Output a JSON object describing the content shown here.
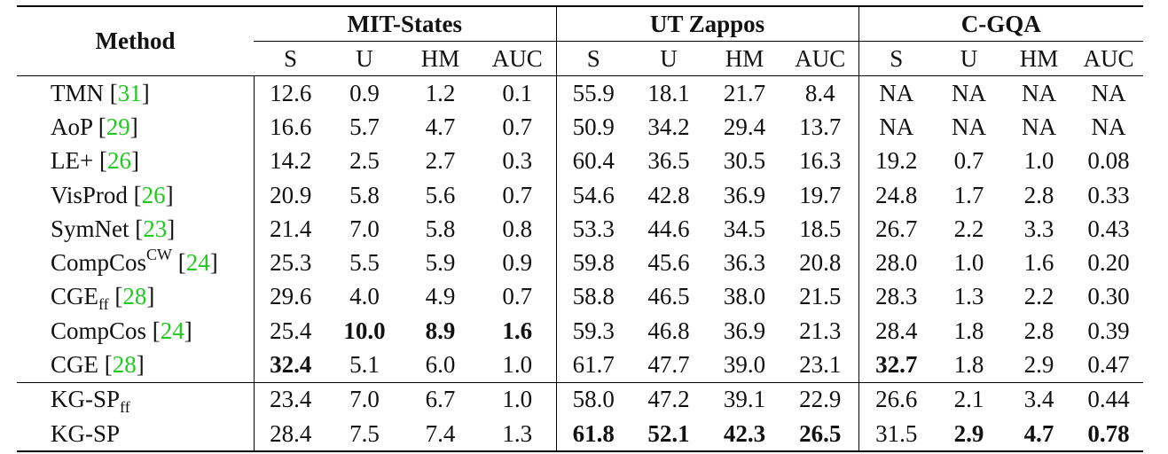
{
  "groups": [
    "MIT-States",
    "UT Zappos",
    "C-GQA"
  ],
  "method_header": "Method",
  "subheaders": [
    "S",
    "U",
    "HM",
    "AUC"
  ],
  "rows": [
    {
      "name": "TMN",
      "sub": "",
      "sup": "",
      "cite": "31",
      "vals": [
        "12.6",
        "0.9",
        "1.2",
        "0.1",
        "55.9",
        "18.1",
        "21.7",
        "8.4",
        "NA",
        "NA",
        "NA",
        "NA"
      ],
      "bold": []
    },
    {
      "name": "AoP",
      "sub": "",
      "sup": "",
      "cite": "29",
      "vals": [
        "16.6",
        "5.7",
        "4.7",
        "0.7",
        "50.9",
        "34.2",
        "29.4",
        "13.7",
        "NA",
        "NA",
        "NA",
        "NA"
      ],
      "bold": []
    },
    {
      "name": "LE+",
      "sub": "",
      "sup": "",
      "cite": "26",
      "vals": [
        "14.2",
        "2.5",
        "2.7",
        "0.3",
        "60.4",
        "36.5",
        "30.5",
        "16.3",
        "19.2",
        "0.7",
        "1.0",
        "0.08"
      ],
      "bold": []
    },
    {
      "name": "VisProd",
      "sub": "",
      "sup": "",
      "cite": "26",
      "vals": [
        "20.9",
        "5.8",
        "5.6",
        "0.7",
        "54.6",
        "42.8",
        "36.9",
        "19.7",
        "24.8",
        "1.7",
        "2.8",
        "0.33"
      ],
      "bold": []
    },
    {
      "name": "SymNet",
      "sub": "",
      "sup": "",
      "cite": "23",
      "vals": [
        "21.4",
        "7.0",
        "5.8",
        "0.8",
        "53.3",
        "44.6",
        "34.5",
        "18.5",
        "26.7",
        "2.2",
        "3.3",
        "0.43"
      ],
      "bold": []
    },
    {
      "name": "CompCos",
      "sub": "",
      "sup": "CW",
      "cite": "24",
      "vals": [
        "25.3",
        "5.5",
        "5.9",
        "0.9",
        "59.8",
        "45.6",
        "36.3",
        "20.8",
        "28.0",
        "1.0",
        "1.6",
        "0.20"
      ],
      "bold": []
    },
    {
      "name": "CGE",
      "sub": "ff",
      "sup": "",
      "cite": "28",
      "vals": [
        "29.6",
        "4.0",
        "4.9",
        "0.7",
        "58.8",
        "46.5",
        "38.0",
        "21.5",
        "28.3",
        "1.3",
        "2.2",
        "0.30"
      ],
      "bold": []
    },
    {
      "name": "CompCos",
      "sub": "",
      "sup": "",
      "cite": "24",
      "vals": [
        "25.4",
        "10.0",
        "8.9",
        "1.6",
        "59.3",
        "46.8",
        "36.9",
        "21.3",
        "28.4",
        "1.8",
        "2.8",
        "0.39"
      ],
      "bold": [
        1,
        2,
        3
      ]
    },
    {
      "name": "CGE",
      "sub": "",
      "sup": "",
      "cite": "28",
      "vals": [
        "32.4",
        "5.1",
        "6.0",
        "1.0",
        "61.7",
        "47.7",
        "39.0",
        "23.1",
        "32.7",
        "1.8",
        "2.9",
        "0.47"
      ],
      "bold": [
        0,
        8
      ]
    },
    {
      "name": "KG-SP",
      "sub": "ff",
      "sup": "",
      "cite": "",
      "vals": [
        "23.4",
        "7.0",
        "6.7",
        "1.0",
        "58.0",
        "47.2",
        "39.1",
        "22.9",
        "26.6",
        "2.1",
        "3.4",
        "0.44"
      ],
      "bold": []
    },
    {
      "name": "KG-SP",
      "sub": "",
      "sup": "",
      "cite": "",
      "vals": [
        "28.4",
        "7.5",
        "7.4",
        "1.3",
        "61.8",
        "52.1",
        "42.3",
        "26.5",
        "31.5",
        "2.9",
        "4.7",
        "0.78"
      ],
      "bold": [
        4,
        5,
        6,
        7,
        9,
        10,
        11
      ]
    }
  ]
}
